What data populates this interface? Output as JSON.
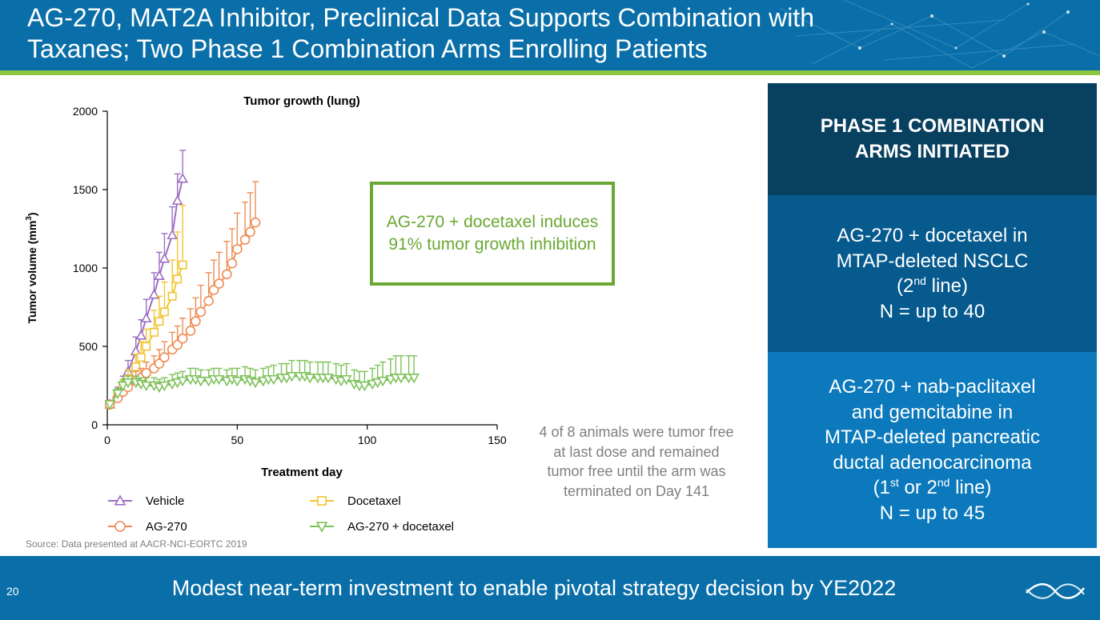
{
  "header": {
    "title_line1": "AG-270, MAT2A Inhibitor, Preclinical Data Supports Combination with",
    "title_line2": "Taxanes; Two Phase 1 Combination Arms Enrolling Patients"
  },
  "colors": {
    "header_bg": "#0a6fa8",
    "accent_green": "#8dc63f",
    "panel_dark": "#08405f",
    "panel_mid": "#065a8e",
    "panel_light": "#0b79bb",
    "vehicle": "#9b6fc3",
    "docetaxel": "#f2c531",
    "ag270": "#ef8c55",
    "combo": "#7dc15a"
  },
  "chart_data": {
    "type": "line",
    "title": "Tumor growth (lung)",
    "xlabel": "Treatment day",
    "ylabel_main": "Tumor volume (mm",
    "ylabel_sup": "3",
    "ylabel_end": ")",
    "xlim": [
      0,
      150
    ],
    "ylim": [
      0,
      2000
    ],
    "xticks": [
      0,
      50,
      100,
      150
    ],
    "yticks": [
      0,
      500,
      1000,
      1500,
      2000
    ],
    "grid": false,
    "legend_position": "bottom",
    "series": [
      {
        "name": "Vehicle",
        "color": "#9b6fc3",
        "marker": "triangle-up",
        "x": [
          1,
          4,
          6,
          8,
          11,
          13,
          15,
          18,
          20,
          22,
          25,
          27,
          29
        ],
        "y": [
          130,
          200,
          260,
          340,
          470,
          570,
          680,
          830,
          950,
          1060,
          1210,
          1430,
          1570
        ],
        "err": [
          20,
          40,
          50,
          70,
          90,
          100,
          120,
          140,
          150,
          160,
          180,
          170,
          180
        ]
      },
      {
        "name": "Docetaxel",
        "color": "#f2c531",
        "marker": "square",
        "x": [
          1,
          4,
          6,
          8,
          11,
          13,
          15,
          18,
          20,
          22,
          25,
          27,
          29
        ],
        "y": [
          130,
          180,
          230,
          290,
          370,
          430,
          500,
          590,
          660,
          720,
          820,
          930,
          1020
        ],
        "err": [
          20,
          40,
          50,
          60,
          80,
          100,
          110,
          140,
          160,
          190,
          230,
          300,
          380
        ]
      },
      {
        "name": "AG-270",
        "color": "#ef8c55",
        "marker": "circle",
        "x": [
          1,
          4,
          6,
          8,
          11,
          13,
          15,
          18,
          20,
          22,
          25,
          27,
          29,
          32,
          34,
          36,
          39,
          41,
          43,
          46,
          48,
          50,
          53,
          55,
          57
        ],
        "y": [
          130,
          170,
          210,
          240,
          280,
          300,
          330,
          360,
          390,
          430,
          480,
          510,
          550,
          600,
          660,
          720,
          790,
          860,
          900,
          960,
          1030,
          1120,
          1180,
          1230,
          1290
        ],
        "err": [
          20,
          30,
          40,
          50,
          60,
          60,
          70,
          80,
          90,
          100,
          110,
          120,
          130,
          140,
          150,
          170,
          180,
          190,
          200,
          210,
          220,
          230,
          240,
          250,
          260
        ]
      },
      {
        "name": "AG-270 + docetaxel",
        "color": "#7dc15a",
        "marker": "triangle-down",
        "x": [
          1,
          4,
          6,
          8,
          11,
          13,
          15,
          18,
          20,
          22,
          25,
          27,
          29,
          32,
          34,
          36,
          39,
          41,
          43,
          46,
          48,
          50,
          53,
          55,
          57,
          60,
          62,
          64,
          67,
          69,
          71,
          74,
          76,
          78,
          81,
          83,
          85,
          88,
          90,
          92,
          95,
          97,
          99,
          102,
          104,
          106,
          109,
          111,
          113,
          116,
          118
        ],
        "y": [
          130,
          200,
          250,
          270,
          270,
          260,
          250,
          250,
          240,
          250,
          260,
          270,
          280,
          290,
          290,
          280,
          280,
          290,
          290,
          280,
          290,
          280,
          290,
          280,
          270,
          280,
          290,
          290,
          300,
          300,
          310,
          310,
          310,
          300,
          300,
          300,
          300,
          290,
          280,
          290,
          260,
          250,
          250,
          260,
          270,
          280,
          290,
          300,
          300,
          300,
          300
        ],
        "err": [
          20,
          30,
          40,
          40,
          40,
          40,
          50,
          50,
          50,
          50,
          60,
          60,
          60,
          70,
          70,
          70,
          70,
          70,
          70,
          70,
          70,
          80,
          80,
          80,
          80,
          80,
          80,
          90,
          90,
          90,
          100,
          100,
          100,
          100,
          100,
          100,
          100,
          100,
          100,
          100,
          90,
          90,
          90,
          100,
          110,
          120,
          130,
          140,
          140,
          140,
          140
        ]
      }
    ]
  },
  "callout": {
    "text": "AG-270 + docetaxel induces 91% tumor growth inhibition"
  },
  "note": {
    "line1": "4 of 8 animals were tumor free",
    "line2": "at last dose and remained",
    "line3": "tumor free until the arm was",
    "line4": "terminated on Day 141"
  },
  "source": "Source: Data presented at AACR-NCI-EORTC 2019",
  "panel": {
    "heading": "PHASE 1 COMBINATION ARMS INITIATED",
    "arm1": {
      "line1": "AG-270 + docetaxel in",
      "line2": "MTAP-deleted NSCLC",
      "line3_pre": "(2",
      "line3_sup": "nd",
      "line3_post": " line)",
      "line4": "N = up to 40"
    },
    "arm2": {
      "line1": "AG-270 + nab-paclitaxel",
      "line2": "and gemcitabine in",
      "line3": "MTAP-deleted pancreatic",
      "line4": "ductal adenocarcinoma",
      "line5_pre": "(1",
      "line5_sup": "st",
      "line5_mid": " or 2",
      "line5_sup2": "nd",
      "line5_post": " line)",
      "line6": "N = up to 45"
    }
  },
  "footer": {
    "page_number": "20",
    "tagline": "Modest near-term investment to enable pivotal strategy decision by YE2022",
    "logo_icon": "wave-logo-icon"
  }
}
